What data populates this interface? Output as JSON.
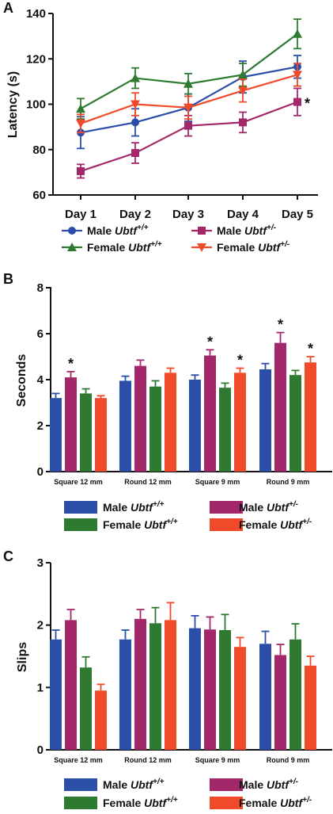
{
  "colors": {
    "male_wt": "#2b4fa8",
    "male_het": "#a3286a",
    "female_wt": "#2e7a31",
    "female_het": "#f04a2a",
    "axis": "#111111"
  },
  "chart_data": [
    {
      "panel": "A",
      "type": "line",
      "title": "",
      "ylabel": "Latency (s)",
      "xlabel": "",
      "categories": [
        "Day 1",
        "Day 2",
        "Day 3",
        "Day 4",
        "Day 5"
      ],
      "ylim": [
        60,
        140
      ],
      "yticks": [
        60,
        80,
        100,
        120,
        140
      ],
      "legend_position": "bottom",
      "grid": false,
      "series": [
        {
          "key": "male_wt",
          "name_prefix": "Male",
          "gene": "Ubtf",
          "genotype": "+/+",
          "marker": "circle",
          "values": [
            87.5,
            92,
            98.5,
            112,
            116.5
          ],
          "errors": [
            7,
            6,
            6,
            7,
            5
          ]
        },
        {
          "key": "female_wt",
          "name_prefix": "Female",
          "gene": "Ubtf",
          "genotype": "+/+",
          "marker": "triangle-up",
          "values": [
            98,
            111.5,
            109,
            113,
            131
          ],
          "errors": [
            4.5,
            4.5,
            4.5,
            5,
            6.5
          ]
        },
        {
          "key": "male_het",
          "name_prefix": "Male",
          "gene": "Ubtf",
          "genotype": "+/-",
          "marker": "square",
          "values": [
            70.5,
            78.5,
            90.5,
            92,
            101
          ],
          "errors": [
            3,
            4.5,
            4.5,
            4.5,
            6
          ]
        },
        {
          "key": "female_het",
          "name_prefix": "Female",
          "gene": "Ubtf",
          "genotype": "+/-",
          "marker": "triangle-down",
          "values": [
            91.5,
            100,
            98.5,
            106,
            113
          ],
          "errors": [
            4,
            5,
            5,
            5,
            5
          ]
        }
      ],
      "annotations": [
        {
          "text": "*",
          "category": "Day 5",
          "series": "male_het"
        }
      ]
    },
    {
      "panel": "B",
      "type": "bar",
      "title": "",
      "ylabel": "Seconds",
      "xlabel": "",
      "categories": [
        "Square 12 mm",
        "Round 12 mm",
        "Square 9 mm",
        "Round 9 mm"
      ],
      "ylim": [
        0,
        8
      ],
      "yticks": [
        0,
        2,
        4,
        6,
        8
      ],
      "legend_position": "bottom",
      "grid": false,
      "series": [
        {
          "key": "male_wt",
          "name_prefix": "Male",
          "gene": "Ubtf",
          "genotype": "+/+",
          "values": [
            3.2,
            3.95,
            4.0,
            4.45
          ],
          "errors": [
            0.2,
            0.2,
            0.2,
            0.25
          ]
        },
        {
          "key": "male_het",
          "name_prefix": "Male",
          "gene": "Ubtf",
          "genotype": "+/-",
          "values": [
            4.1,
            4.6,
            5.05,
            5.6
          ],
          "errors": [
            0.25,
            0.25,
            0.25,
            0.45
          ],
          "significant": [
            true,
            false,
            true,
            true
          ]
        },
        {
          "key": "female_wt",
          "name_prefix": "Female",
          "gene": "Ubtf",
          "genotype": "+/+",
          "values": [
            3.4,
            3.7,
            3.65,
            4.2
          ],
          "errors": [
            0.2,
            0.25,
            0.2,
            0.2
          ]
        },
        {
          "key": "female_het",
          "name_prefix": "Female",
          "gene": "Ubtf",
          "genotype": "+/-",
          "values": [
            3.2,
            4.3,
            4.3,
            4.75
          ],
          "errors": [
            0.1,
            0.2,
            0.2,
            0.25
          ],
          "significant": [
            false,
            false,
            true,
            true
          ]
        }
      ],
      "significance_marker": "*"
    },
    {
      "panel": "C",
      "type": "bar",
      "title": "",
      "ylabel": "Slips",
      "xlabel": "",
      "categories": [
        "Square 12 mm",
        "Round 12 mm",
        "Square 9 mm",
        "Round 9 mm"
      ],
      "ylim": [
        0,
        3
      ],
      "yticks": [
        0,
        1,
        2,
        3
      ],
      "legend_position": "bottom",
      "grid": false,
      "series": [
        {
          "key": "male_wt",
          "name_prefix": "Male",
          "gene": "Ubtf",
          "genotype": "+/+",
          "values": [
            1.77,
            1.77,
            1.95,
            1.7
          ],
          "errors": [
            0.15,
            0.15,
            0.2,
            0.2
          ]
        },
        {
          "key": "male_het",
          "name_prefix": "Male",
          "gene": "Ubtf",
          "genotype": "+/-",
          "values": [
            2.08,
            2.1,
            1.93,
            1.52
          ],
          "errors": [
            0.17,
            0.15,
            0.2,
            0.17
          ]
        },
        {
          "key": "female_wt",
          "name_prefix": "Female",
          "gene": "Ubtf",
          "genotype": "+/+",
          "values": [
            1.32,
            2.03,
            1.92,
            1.77
          ],
          "errors": [
            0.17,
            0.25,
            0.25,
            0.25
          ]
        },
        {
          "key": "female_het",
          "name_prefix": "Female",
          "gene": "Ubtf",
          "genotype": "+/-",
          "values": [
            0.95,
            2.08,
            1.65,
            1.35
          ],
          "errors": [
            0.1,
            0.28,
            0.15,
            0.15
          ]
        }
      ]
    }
  ]
}
